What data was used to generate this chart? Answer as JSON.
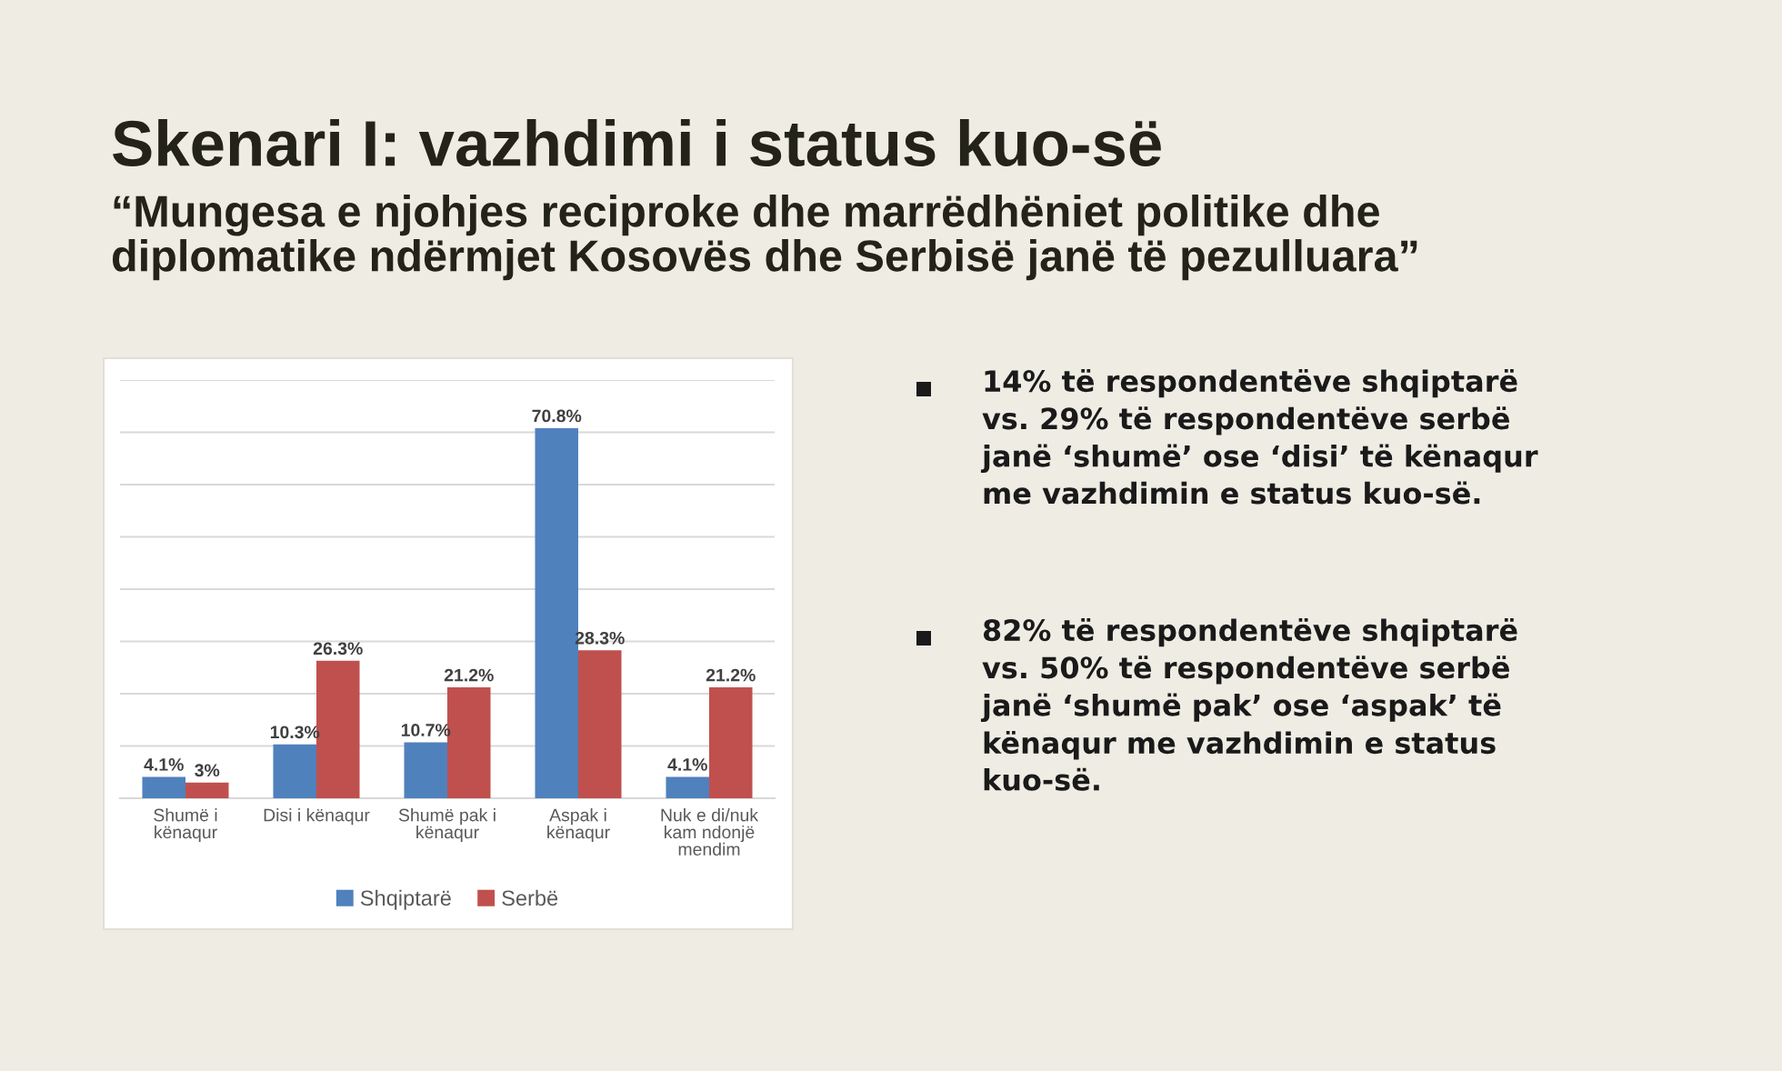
{
  "chart_data": {
    "type": "bar",
    "title": "Skenari I: vazhdimi i status kuo-së",
    "subtitle": "“Mungesa e njohjes reciproke dhe marrëdhëniet politike dhe diplomatike ndërmjet Kosovës dhe Serbisë janë të pezulluara”",
    "categories": [
      "Shumë i kënaqur",
      "Disi i kënaqur",
      "Shumë pak i kënaqur",
      "Aspak i kënaqur",
      "Nuk e di/nuk kam ndonjë mendim"
    ],
    "series": [
      {
        "name": "Shqiptarë",
        "color": "#4f81bd",
        "values": [
          4.1,
          10.3,
          10.7,
          70.8,
          4.1
        ],
        "value_labels": [
          "4.1%",
          "10.3%",
          "10.7%",
          "70.8%",
          "4.1%"
        ]
      },
      {
        "name": "Serbë",
        "color": "#c0504d",
        "values": [
          3,
          26.3,
          21.2,
          28.3,
          21.2
        ],
        "value_labels": [
          "3%",
          "26.3%",
          "21.2%",
          "28.3%",
          "21.2%"
        ]
      }
    ],
    "ylim": [
      0,
      80
    ],
    "yticks": [
      {
        "value": 0,
        "label": null
      },
      {
        "value": 10,
        "label": null
      },
      {
        "value": 20,
        "label": null
      },
      {
        "value": 30,
        "label": null
      },
      {
        "value": 40,
        "label": null
      },
      {
        "value": 50,
        "label": null
      },
      {
        "value": 60,
        "label": null
      },
      {
        "value": 70,
        "label": null
      },
      {
        "value": 80,
        "label": null
      }
    ],
    "tick_labels": "x",
    "grid": "y",
    "legend": "bottom",
    "annotations": [
      "14% të respondentëve shqiptarë vs. 29% të respondentëve serbë janë ‘shumë’ ose ‘disi’ të kënaqur me vazhdimin e status kuo-së.",
      "82% të respondentëve shqiptarë vs. 50% të respondentëve serbë janë ‘shumë pak’ ose ‘aspak’ të kënaqur me vazhdimin e status kuo-së."
    ]
  }
}
